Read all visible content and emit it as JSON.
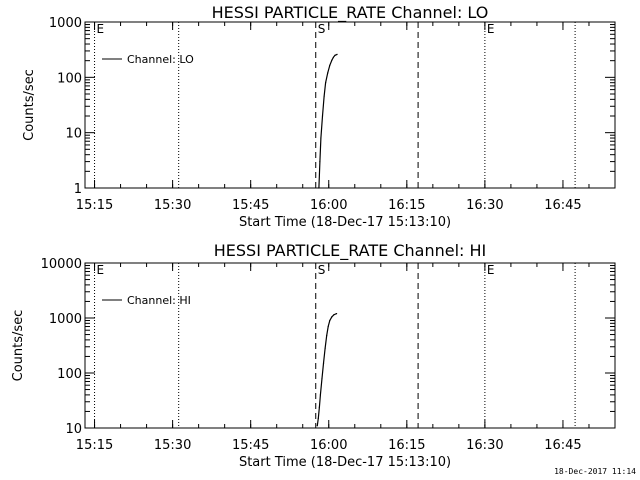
{
  "timestamp": "18-Dec-2017 11:14",
  "chart_data": [
    {
      "type": "line",
      "title": "HESSI PARTICLE_RATE Channel: LO",
      "xlabel": "Start Time (18-Dec-17 15:13:10)",
      "ylabel": "Counts/sec",
      "y_scale": "log",
      "xlim": [
        "15:13:10",
        "16:55:00"
      ],
      "ylim": [
        1,
        1000
      ],
      "x_ticks": [
        "15:15",
        "15:30",
        "15:45",
        "16:00",
        "16:15",
        "16:30",
        "16:45"
      ],
      "y_ticks": [
        "1",
        "10",
        "100",
        "1000"
      ],
      "legend": "top-left",
      "series": [
        {
          "name": "Channel: LO",
          "x": [
            "15:58:06",
            "15:58:18",
            "15:58:30",
            "15:58:48",
            "15:59:06",
            "15:59:24",
            "15:59:48",
            "16:00:12",
            "16:00:36",
            "16:00:54",
            "16:01:12",
            "16:01:36"
          ],
          "values": [
            1,
            3,
            8,
            20,
            45,
            80,
            120,
            165,
            205,
            230,
            250,
            260
          ]
        }
      ],
      "vertical_lines": [
        {
          "x": "15:15:00",
          "style": "dotted",
          "label": "E"
        },
        {
          "x": "15:31:10",
          "style": "dotted",
          "label": ""
        },
        {
          "x": "15:57:30",
          "style": "dashed",
          "label": "S"
        },
        {
          "x": "16:17:10",
          "style": "dashed",
          "label": ""
        },
        {
          "x": "16:30:00",
          "style": "dotted",
          "label": "E"
        },
        {
          "x": "16:47:20",
          "style": "dotted",
          "label": ""
        }
      ]
    },
    {
      "type": "line",
      "title": "HESSI PARTICLE_RATE Channel: HI",
      "xlabel": "Start Time (18-Dec-17 15:13:10)",
      "ylabel": "Counts/sec",
      "y_scale": "log",
      "xlim": [
        "15:13:10",
        "16:55:00"
      ],
      "ylim": [
        10,
        10000
      ],
      "x_ticks": [
        "15:15",
        "15:30",
        "15:45",
        "16:00",
        "16:15",
        "16:30",
        "16:45"
      ],
      "y_ticks": [
        "10",
        "100",
        "1000",
        "10000"
      ],
      "legend": "top-left",
      "series": [
        {
          "name": "Channel: HI",
          "x": [
            "15:57:48",
            "15:58:00",
            "15:58:12",
            "15:58:24",
            "15:58:42",
            "15:59:00",
            "15:59:18",
            "15:59:36",
            "15:59:54",
            "16:00:12",
            "16:00:36",
            "16:01:00",
            "16:01:30"
          ],
          "values": [
            11,
            15,
            24,
            40,
            80,
            150,
            280,
            480,
            700,
            900,
            1050,
            1150,
            1200
          ]
        }
      ],
      "vertical_lines": [
        {
          "x": "15:15:00",
          "style": "dotted",
          "label": "E"
        },
        {
          "x": "15:31:10",
          "style": "dotted",
          "label": ""
        },
        {
          "x": "15:57:30",
          "style": "dashed",
          "label": "S"
        },
        {
          "x": "16:17:10",
          "style": "dashed",
          "label": ""
        },
        {
          "x": "16:30:00",
          "style": "dotted",
          "label": "E"
        },
        {
          "x": "16:47:20",
          "style": "dotted",
          "label": ""
        }
      ]
    }
  ]
}
